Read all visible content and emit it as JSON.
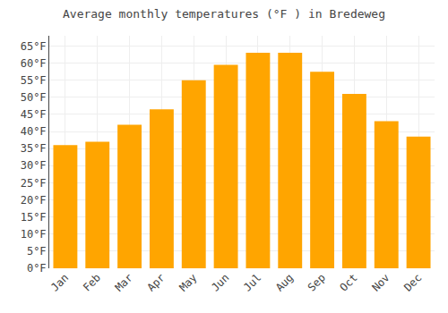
{
  "chart_data": {
    "type": "bar",
    "title": "Average monthly temperatures (°F ) in Bredeweg",
    "categories": [
      "Jan",
      "Feb",
      "Mar",
      "Apr",
      "May",
      "Jun",
      "Jul",
      "Aug",
      "Sep",
      "Oct",
      "Nov",
      "Dec"
    ],
    "values": [
      36,
      37,
      42,
      46.5,
      55,
      59.5,
      63,
      63,
      57.5,
      51,
      43,
      38.5
    ],
    "color": "#FFA500",
    "ylim": [
      0,
      68
    ],
    "yticks": [
      {
        "value": 0,
        "label": "0°F"
      },
      {
        "value": 5,
        "label": "5°F"
      },
      {
        "value": 10,
        "label": "10°F"
      },
      {
        "value": 15,
        "label": "15°F"
      },
      {
        "value": 20,
        "label": "20°F"
      },
      {
        "value": 25,
        "label": "25°F"
      },
      {
        "value": 30,
        "label": "30°F"
      },
      {
        "value": 35,
        "label": "35°F"
      },
      {
        "value": 40,
        "label": "40°F"
      },
      {
        "value": 45,
        "label": "45°F"
      },
      {
        "value": 50,
        "label": "50°F"
      },
      {
        "value": 55,
        "label": "55°F"
      },
      {
        "value": 60,
        "label": "60°F"
      },
      {
        "value": 65,
        "label": "65°F"
      }
    ],
    "grid": true
  }
}
